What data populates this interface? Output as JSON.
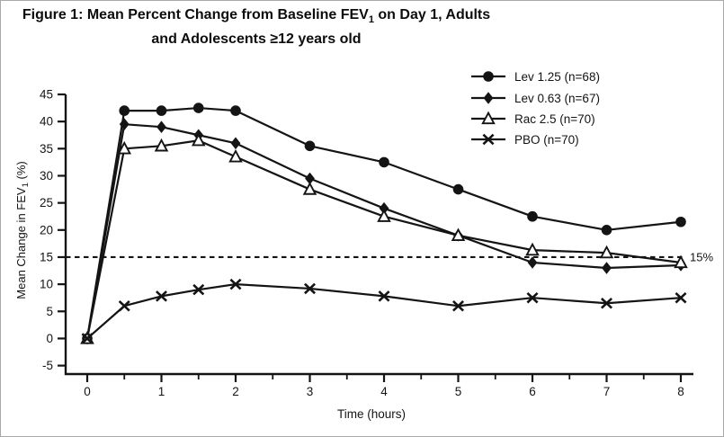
{
  "title": {
    "line1_pre": "Figure 1: Mean Percent Change from Baseline FEV",
    "line1_sub": "1",
    "line1_post": " on Day 1, Adults",
    "line2": "and Adolescents ≥12 years old"
  },
  "colors": {
    "ink": "#141414",
    "background": "#ffffff",
    "triangle_fill": "#ffffff"
  },
  "chart_data": {
    "type": "line",
    "title": "Figure 1: Mean Percent Change from Baseline FEV1 on Day 1, Adults and Adolescents ≥12 years old",
    "xlabel": "Time (hours)",
    "ylabel_pre": "Mean Change in FEV",
    "ylabel_sub": "1",
    "ylabel_post": " (%)",
    "xlim": [
      -0.3,
      8.2
    ],
    "ylim": [
      -5,
      45
    ],
    "xticks": [
      0,
      1,
      2,
      3,
      4,
      5,
      6,
      7,
      8
    ],
    "xminor_ticks": [
      0.5,
      1.5,
      2.5,
      3.5,
      4.5,
      5.5,
      6.5,
      7.5
    ],
    "yticks": [
      45,
      40,
      35,
      30,
      25,
      20,
      15,
      10,
      5,
      0,
      -5
    ],
    "grid": false,
    "legend_position": "top-right",
    "reference_line": {
      "y": 15,
      "label": "15%",
      "style": "dashed"
    },
    "x": [
      0,
      0.5,
      1,
      1.5,
      2,
      3,
      4,
      5,
      6,
      7,
      8
    ],
    "series": [
      {
        "name": "Lev 1.25 (n=68)",
        "marker": "filled-circle",
        "values": [
          0,
          42,
          42,
          42.5,
          42,
          35.5,
          32.5,
          27.5,
          22.5,
          20,
          21.5
        ]
      },
      {
        "name": "Lev 0.63 (n=67)",
        "marker": "filled-diamond",
        "values": [
          0,
          39.5,
          39,
          37.5,
          36,
          29.5,
          24,
          19,
          14,
          13,
          13.5
        ]
      },
      {
        "name": "Rac 2.5 (n=70)",
        "marker": "open-triangle",
        "values": [
          0,
          35,
          35.5,
          36.5,
          33.5,
          27.5,
          22.5,
          19,
          16.3,
          15.8,
          14
        ]
      },
      {
        "name": "PBO (n=70)",
        "marker": "x-cross",
        "values": [
          0,
          6,
          7.8,
          9,
          10,
          9.2,
          7.8,
          6,
          7.5,
          6.5,
          7.5
        ]
      }
    ]
  }
}
